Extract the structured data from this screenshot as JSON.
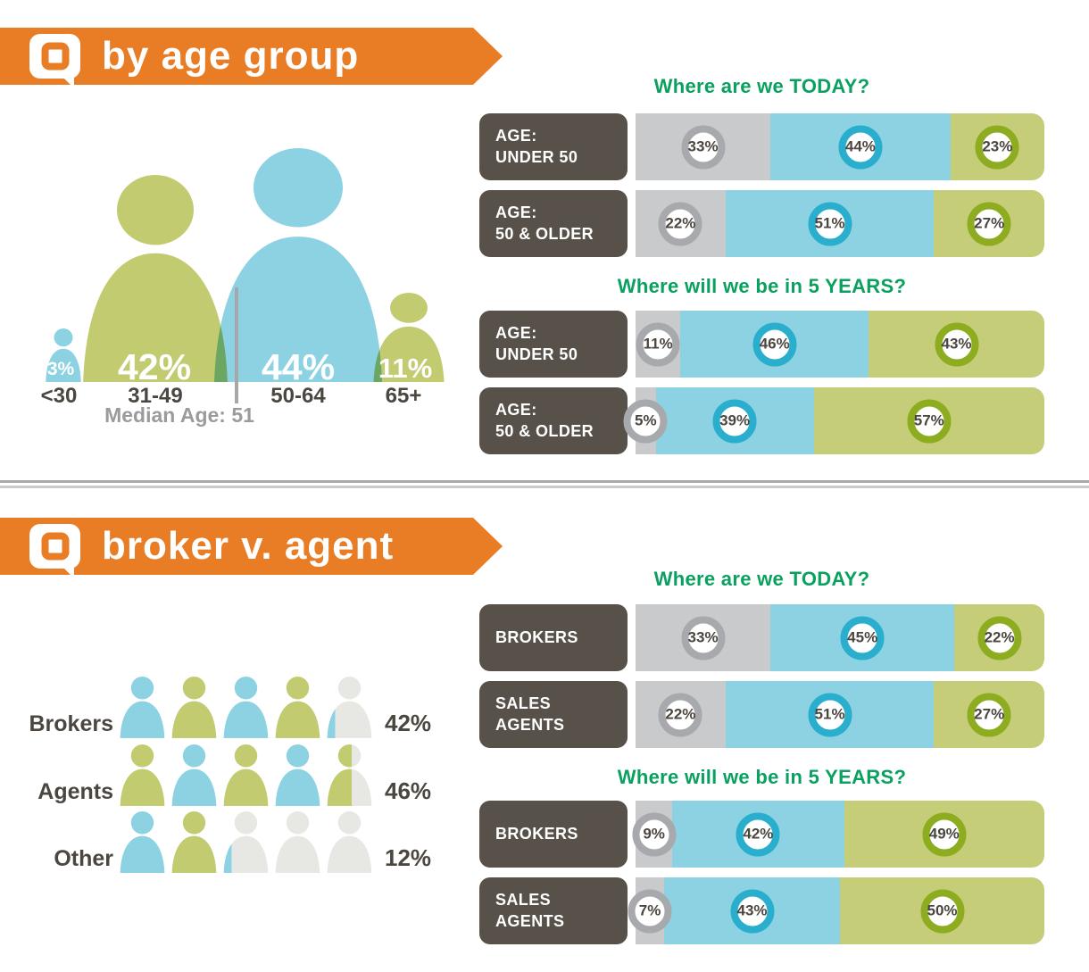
{
  "palette": {
    "orange": "#E87D26",
    "title_green": "#0AA05F",
    "label_dark": "#57514A",
    "segment_gray": "#C9CACC",
    "segment_blue": "#8DD2E2",
    "segment_green": "#C5CD79",
    "ring_gray": "#A7A9AC",
    "ring_blue": "#2AAECD",
    "ring_green": "#8DAC20",
    "figure_blue": "#8DD2E2",
    "figure_green": "#C2CB70",
    "icon_gray": "#E7E7E3",
    "text_dark": "#4B463F",
    "text_gray": "#9B9B9B"
  },
  "sections": {
    "age": {
      "banner_title": "by age group",
      "figures": {
        "under30": {
          "pct": "3%",
          "label": "<30"
        },
        "f3149": {
          "pct": "42%",
          "label": "31-49"
        },
        "f5064": {
          "pct": "44%",
          "label": "50-64"
        },
        "f65plus": {
          "pct": "11%",
          "label": "65+"
        }
      },
      "median_note": "Median Age: 51",
      "groups": [
        {
          "title": "Where are we TODAY?",
          "rows": [
            {
              "l1": "AGE:",
              "l2": "UNDER 50",
              "segs": [
                {
                  "v": 33,
                  "t": "33%"
                },
                {
                  "v": 44,
                  "t": "44%"
                },
                {
                  "v": 23,
                  "t": "23%"
                }
              ]
            },
            {
              "l1": "AGE:",
              "l2": "50 & OLDER",
              "segs": [
                {
                  "v": 22,
                  "t": "22%"
                },
                {
                  "v": 51,
                  "t": "51%"
                },
                {
                  "v": 27,
                  "t": "27%"
                }
              ]
            }
          ]
        },
        {
          "title": "Where will we be in 5 YEARS?",
          "rows": [
            {
              "l1": "AGE:",
              "l2": "UNDER 50",
              "segs": [
                {
                  "v": 11,
                  "t": "11%"
                },
                {
                  "v": 46,
                  "t": "46%"
                },
                {
                  "v": 43,
                  "t": "43%"
                }
              ]
            },
            {
              "l1": "AGE:",
              "l2": "50 & OLDER",
              "segs": [
                {
                  "v": 5,
                  "t": "5%"
                },
                {
                  "v": 39,
                  "t": "39%"
                },
                {
                  "v": 57,
                  "t": "57%"
                }
              ]
            }
          ]
        }
      ]
    },
    "broker": {
      "banner_title": "broker v. agent",
      "pictograph": {
        "rows": [
          {
            "label": "Brokers",
            "value": "42%",
            "icons": [
              [
                [
                  "blue",
                  100
                ]
              ],
              [
                [
                  "green",
                  100
                ]
              ],
              [
                [
                  "blue",
                  100
                ]
              ],
              [
                [
                  "green",
                  100
                ]
              ],
              [
                [
                  "blue",
                  20
                ],
                [
                  "gray",
                  80
                ]
              ]
            ]
          },
          {
            "label": "Agents",
            "value": "46%",
            "icons": [
              [
                [
                  "green",
                  100
                ]
              ],
              [
                [
                  "blue",
                  100
                ]
              ],
              [
                [
                  "green",
                  100
                ]
              ],
              [
                [
                  "blue",
                  100
                ]
              ],
              [
                [
                  "green",
                  55
                ],
                [
                  "gray",
                  45
                ]
              ]
            ]
          },
          {
            "label": "Other",
            "value": "12%",
            "icons": [
              [
                [
                  "blue",
                  100
                ]
              ],
              [
                [
                  "green",
                  100
                ]
              ],
              [
                [
                  "blue",
                  20
                ],
                [
                  "gray",
                  80
                ]
              ],
              [
                [
                  "gray",
                  100
                ]
              ],
              [
                [
                  "gray",
                  100
                ]
              ]
            ]
          }
        ]
      },
      "groups": [
        {
          "title": "Where are we TODAY?",
          "rows": [
            {
              "l1": "BROKERS",
              "l2": "",
              "segs": [
                {
                  "v": 33,
                  "t": "33%"
                },
                {
                  "v": 45,
                  "t": "45%"
                },
                {
                  "v": 22,
                  "t": "22%"
                }
              ]
            },
            {
              "l1": "SALES",
              "l2": "AGENTS",
              "segs": [
                {
                  "v": 22,
                  "t": "22%"
                },
                {
                  "v": 51,
                  "t": "51%"
                },
                {
                  "v": 27,
                  "t": "27%"
                }
              ]
            }
          ]
        },
        {
          "title": "Where will we be in 5 YEARS?",
          "rows": [
            {
              "l1": "BROKERS",
              "l2": "",
              "segs": [
                {
                  "v": 9,
                  "t": "9%"
                },
                {
                  "v": 42,
                  "t": "42%"
                },
                {
                  "v": 49,
                  "t": "49%"
                }
              ]
            },
            {
              "l1": "SALES",
              "l2": "AGENTS",
              "segs": [
                {
                  "v": 7,
                  "t": "7%"
                },
                {
                  "v": 43,
                  "t": "43%"
                },
                {
                  "v": 50,
                  "t": "50%"
                }
              ]
            }
          ]
        }
      ]
    }
  },
  "chart_data": [
    {
      "type": "pictogram",
      "title": "by age group",
      "unit": "percent",
      "categories": [
        "<30",
        "31-49",
        "50-64",
        "65+"
      ],
      "values": [
        3,
        42,
        44,
        11
      ],
      "annotation": "Median Age: 51"
    },
    {
      "type": "bar",
      "variant": "horizontal-stacked",
      "section": "by age group",
      "title": "Where are we TODAY?",
      "categories": [
        "AGE: UNDER 50",
        "AGE: 50 & OLDER"
      ],
      "xlim": [
        0,
        100
      ],
      "unit": "percent",
      "series": [
        {
          "name": "gray",
          "values": [
            33,
            22
          ]
        },
        {
          "name": "blue",
          "values": [
            44,
            51
          ]
        },
        {
          "name": "green",
          "values": [
            23,
            27
          ]
        }
      ]
    },
    {
      "type": "bar",
      "variant": "horizontal-stacked",
      "section": "by age group",
      "title": "Where will we be in 5 YEARS?",
      "categories": [
        "AGE: UNDER 50",
        "AGE: 50 & OLDER"
      ],
      "xlim": [
        0,
        100
      ],
      "unit": "percent",
      "series": [
        {
          "name": "gray",
          "values": [
            11,
            5
          ]
        },
        {
          "name": "blue",
          "values": [
            46,
            39
          ]
        },
        {
          "name": "green",
          "values": [
            43,
            57
          ]
        }
      ]
    },
    {
      "type": "pictogram",
      "title": "broker v. agent",
      "unit": "percent",
      "categories": [
        "Brokers",
        "Agents",
        "Other"
      ],
      "values": [
        42,
        46,
        12
      ]
    },
    {
      "type": "bar",
      "variant": "horizontal-stacked",
      "section": "broker v. agent",
      "title": "Where are we TODAY?",
      "categories": [
        "BROKERS",
        "SALES AGENTS"
      ],
      "xlim": [
        0,
        100
      ],
      "unit": "percent",
      "series": [
        {
          "name": "gray",
          "values": [
            33,
            22
          ]
        },
        {
          "name": "blue",
          "values": [
            45,
            51
          ]
        },
        {
          "name": "green",
          "values": [
            22,
            27
          ]
        }
      ]
    },
    {
      "type": "bar",
      "variant": "horizontal-stacked",
      "section": "broker v. agent",
      "title": "Where will we be in 5 YEARS?",
      "categories": [
        "BROKERS",
        "SALES AGENTS"
      ],
      "xlim": [
        0,
        100
      ],
      "unit": "percent",
      "series": [
        {
          "name": "gray",
          "values": [
            9,
            7
          ]
        },
        {
          "name": "blue",
          "values": [
            42,
            43
          ]
        },
        {
          "name": "green",
          "values": [
            49,
            50
          ]
        }
      ]
    }
  ]
}
